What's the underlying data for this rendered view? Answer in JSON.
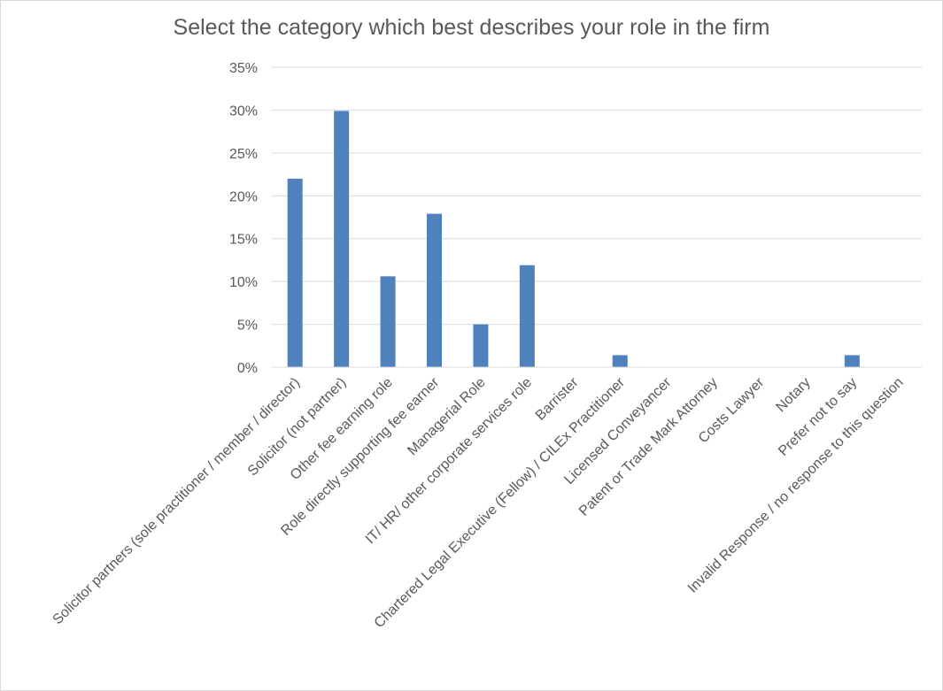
{
  "chart_data": {
    "type": "bar",
    "title": "Select the category which best describes your role in the firm",
    "categories": [
      "Solicitor partners (sole practitioner / member / director)",
      "Solicitor (not partner)",
      "Other fee earning role",
      "Role directly supporting fee earner",
      "Managerial Role",
      "IT/ HR/ other corporate services role",
      "Barrister",
      "Chartered Legal Executive (Fellow) / CILEx Practitioner",
      "Licensed Conveyancer",
      "Patent or Trade Mark Attorney",
      "Costs Lawyer",
      "Notary",
      "Prefer not to say",
      "Invalid Response / no response to this question"
    ],
    "values": [
      22.0,
      29.9,
      10.6,
      17.9,
      5.0,
      11.9,
      0,
      1.4,
      0,
      0,
      0,
      0,
      1.4,
      0
    ],
    "ylim": [
      0,
      35
    ],
    "yticks": [
      "0%",
      "5%",
      "10%",
      "15%",
      "20%",
      "25%",
      "30%",
      "35%"
    ],
    "xlabel": "",
    "ylabel": "",
    "grid": true,
    "legend": "none",
    "bar_color": "#4f81bd"
  }
}
